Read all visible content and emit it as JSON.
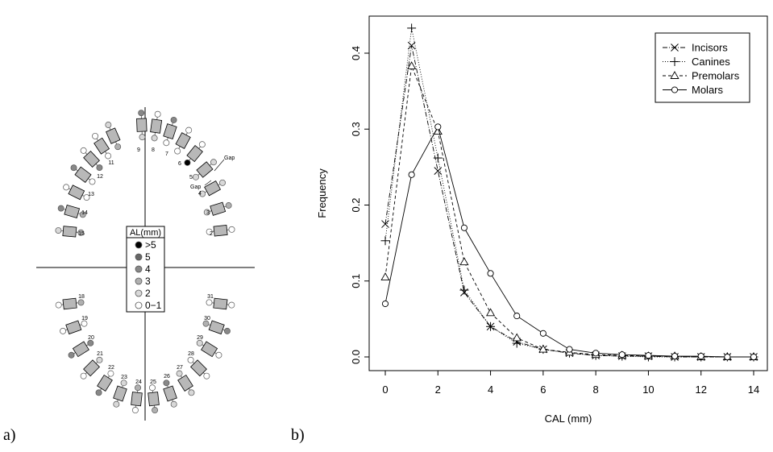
{
  "panel_labels": {
    "a": "a)",
    "b": "b)"
  },
  "dental_chart": {
    "legend_title": "AL(mm)",
    "legend_levels": [
      {
        "label": ">5",
        "color": "#000000"
      },
      {
        "label": "5",
        "color": "#666666"
      },
      {
        "label": "4",
        "color": "#888888"
      },
      {
        "label": "3",
        "color": "#b0b0b0"
      },
      {
        "label": "2",
        "color": "#d8d8d8"
      },
      {
        "label": "0−1",
        "color": "#ffffff"
      }
    ],
    "tooth_numbers": [
      "2",
      "3",
      "4",
      "5",
      "6",
      "7",
      "8",
      "9",
      "11",
      "12",
      "13",
      "14",
      "15",
      "18",
      "19",
      "20",
      "21",
      "22",
      "23",
      "24",
      "25",
      "26",
      "27",
      "28",
      "29",
      "30",
      "31"
    ],
    "gap_labels": [
      "Gap",
      "Gap"
    ]
  },
  "chart_data": {
    "type": "line",
    "xlabel": "CAL (mm)",
    "ylabel": "Frequency",
    "x": [
      0,
      1,
      2,
      3,
      4,
      5,
      6,
      7,
      8,
      9,
      10,
      11,
      12,
      13,
      14
    ],
    "xlim": [
      0,
      14
    ],
    "ylim": [
      0,
      0.43
    ],
    "x_ticks": [
      "0",
      "2",
      "4",
      "6",
      "8",
      "10",
      "12",
      "14"
    ],
    "y_ticks": [
      "0.0",
      "0.1",
      "0.2",
      "0.3",
      "0.4"
    ],
    "legend_position": "top-right",
    "grid": false,
    "series": [
      {
        "name": "Incisors",
        "marker": "x",
        "dash": "6,2,1,2",
        "values": [
          0.175,
          0.41,
          0.245,
          0.085,
          0.04,
          0.02,
          0.01,
          0.005,
          0.002,
          0.001,
          0.001,
          0,
          0,
          0,
          0
        ]
      },
      {
        "name": "Canines",
        "marker": "+",
        "dash": "1,2",
        "values": [
          0.153,
          0.433,
          0.262,
          0.088,
          0.04,
          0.018,
          0.01,
          0.005,
          0.002,
          0.001,
          0,
          0,
          0,
          0,
          0
        ]
      },
      {
        "name": "Premolars",
        "marker": "triangle",
        "dash": "4,3",
        "values": [
          0.105,
          0.383,
          0.297,
          0.125,
          0.058,
          0.025,
          0.01,
          0.006,
          0.003,
          0.002,
          0.001,
          0.001,
          0,
          0,
          0
        ]
      },
      {
        "name": "Molars",
        "marker": "circle",
        "dash": "",
        "values": [
          0.07,
          0.24,
          0.303,
          0.17,
          0.11,
          0.054,
          0.031,
          0.01,
          0.005,
          0.003,
          0.002,
          0.001,
          0.001,
          0,
          0
        ]
      }
    ]
  }
}
